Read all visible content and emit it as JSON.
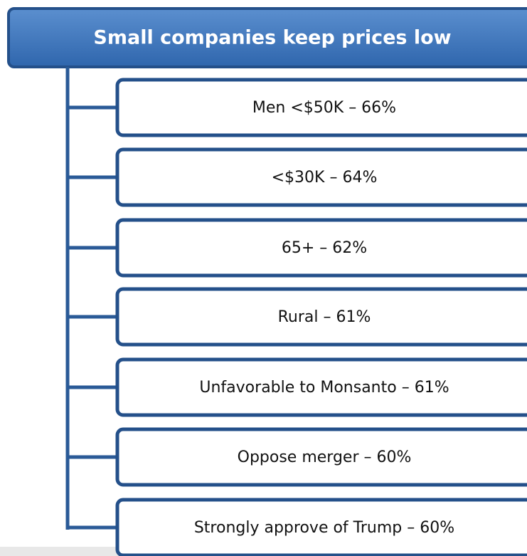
{
  "header": {
    "title": "Small companies keep prices low"
  },
  "nodes": [
    {
      "label": "Men <$50K – 66%"
    },
    {
      "label": "<$30K – 64%"
    },
    {
      "label": "65+ – 62%"
    },
    {
      "label": "Rural – 61%"
    },
    {
      "label": "Unfavorable to Monsanto – 61%"
    },
    {
      "label": "Oppose merger – 60%"
    },
    {
      "label": "Strongly approve of Trump – 60%"
    }
  ]
}
